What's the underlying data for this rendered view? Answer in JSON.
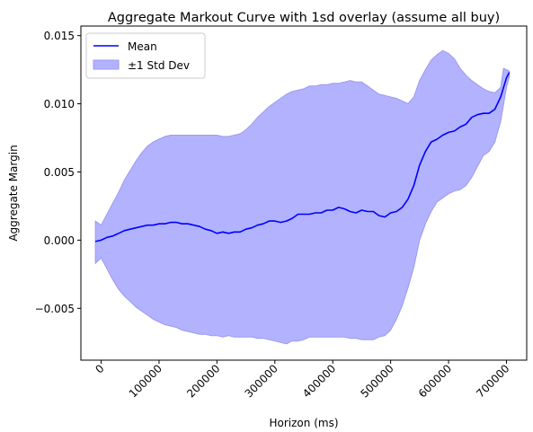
{
  "chart_data": {
    "type": "area",
    "title": "Aggregate Markout Curve with 1sd overlay (assume all buy)",
    "xlabel": "Horizon (ms)",
    "ylabel": "Aggregate Margin",
    "xlim": [
      -35000,
      735000
    ],
    "ylim": [
      -0.0088,
      0.0157
    ],
    "xticks": [
      0,
      100000,
      200000,
      300000,
      400000,
      500000,
      600000,
      700000
    ],
    "xtick_labels": [
      "0",
      "100000",
      "200000",
      "300000",
      "400000",
      "500000",
      "600000",
      "700000"
    ],
    "yticks": [
      -0.005,
      0.0,
      0.005,
      0.01,
      0.015
    ],
    "ytick_labels": [
      "−0.005",
      "0.000",
      "0.005",
      "0.010",
      "0.015"
    ],
    "x_tick_rotation_deg": 45,
    "grid": false,
    "legend_position": "upper-left",
    "series": [
      {
        "name": "Mean",
        "kind": "line",
        "color": "#0000ff",
        "points": [
          [
            -10000,
            -0.0001
          ],
          [
            0,
            0.0
          ],
          [
            10000,
            0.0002
          ],
          [
            20000,
            0.0003
          ],
          [
            30000,
            0.0005
          ],
          [
            40000,
            0.0007
          ],
          [
            50000,
            0.0008
          ],
          [
            60000,
            0.0009
          ],
          [
            70000,
            0.001
          ],
          [
            80000,
            0.0011
          ],
          [
            90000,
            0.0011
          ],
          [
            100000,
            0.0012
          ],
          [
            110000,
            0.0012
          ],
          [
            120000,
            0.0013
          ],
          [
            130000,
            0.0013
          ],
          [
            140000,
            0.0012
          ],
          [
            150000,
            0.0012
          ],
          [
            160000,
            0.0011
          ],
          [
            170000,
            0.001
          ],
          [
            180000,
            0.0008
          ],
          [
            190000,
            0.0007
          ],
          [
            200000,
            0.0005
          ],
          [
            210000,
            0.0006
          ],
          [
            220000,
            0.0005
          ],
          [
            230000,
            0.0006
          ],
          [
            240000,
            0.0006
          ],
          [
            250000,
            0.0008
          ],
          [
            260000,
            0.0009
          ],
          [
            270000,
            0.0011
          ],
          [
            280000,
            0.0012
          ],
          [
            290000,
            0.0014
          ],
          [
            300000,
            0.0014
          ],
          [
            310000,
            0.0013
          ],
          [
            320000,
            0.0014
          ],
          [
            330000,
            0.0016
          ],
          [
            340000,
            0.0019
          ],
          [
            350000,
            0.0019
          ],
          [
            360000,
            0.0019
          ],
          [
            370000,
            0.002
          ],
          [
            380000,
            0.002
          ],
          [
            390000,
            0.0022
          ],
          [
            400000,
            0.0022
          ],
          [
            410000,
            0.0024
          ],
          [
            420000,
            0.0023
          ],
          [
            430000,
            0.0021
          ],
          [
            440000,
            0.002
          ],
          [
            450000,
            0.0022
          ],
          [
            460000,
            0.0021
          ],
          [
            470000,
            0.0021
          ],
          [
            480000,
            0.0018
          ],
          [
            490000,
            0.0017
          ],
          [
            500000,
            0.002
          ],
          [
            510000,
            0.0021
          ],
          [
            520000,
            0.0024
          ],
          [
            530000,
            0.003
          ],
          [
            540000,
            0.004
          ],
          [
            550000,
            0.0055
          ],
          [
            560000,
            0.0065
          ],
          [
            570000,
            0.0072
          ],
          [
            580000,
            0.0074
          ],
          [
            590000,
            0.0077
          ],
          [
            600000,
            0.0079
          ],
          [
            610000,
            0.008
          ],
          [
            620000,
            0.0083
          ],
          [
            630000,
            0.0085
          ],
          [
            640000,
            0.009
          ],
          [
            650000,
            0.0092
          ],
          [
            660000,
            0.0093
          ],
          [
            670000,
            0.0093
          ],
          [
            680000,
            0.0096
          ],
          [
            690000,
            0.0105
          ],
          [
            700000,
            0.0119
          ],
          [
            705000,
            0.0123
          ]
        ]
      },
      {
        "name": "±1 Std Dev",
        "kind": "band",
        "fill": "#b2b2ff",
        "edge": "#9b9bf0",
        "upper": [
          [
            -10000,
            0.0014
          ],
          [
            0,
            0.0011
          ],
          [
            10000,
            0.0019
          ],
          [
            20000,
            0.0027
          ],
          [
            30000,
            0.0035
          ],
          [
            40000,
            0.0044
          ],
          [
            50000,
            0.0051
          ],
          [
            60000,
            0.0058
          ],
          [
            70000,
            0.0064
          ],
          [
            80000,
            0.0069
          ],
          [
            90000,
            0.0072
          ],
          [
            100000,
            0.0074
          ],
          [
            110000,
            0.0076
          ],
          [
            120000,
            0.0077
          ],
          [
            130000,
            0.0077
          ],
          [
            140000,
            0.0077
          ],
          [
            150000,
            0.0077
          ],
          [
            160000,
            0.0077
          ],
          [
            170000,
            0.0077
          ],
          [
            180000,
            0.0077
          ],
          [
            190000,
            0.0077
          ],
          [
            200000,
            0.0077
          ],
          [
            210000,
            0.0076
          ],
          [
            220000,
            0.0076
          ],
          [
            230000,
            0.0077
          ],
          [
            240000,
            0.0078
          ],
          [
            250000,
            0.0081
          ],
          [
            260000,
            0.0085
          ],
          [
            270000,
            0.009
          ],
          [
            280000,
            0.0094
          ],
          [
            290000,
            0.0098
          ],
          [
            300000,
            0.0101
          ],
          [
            310000,
            0.0104
          ],
          [
            320000,
            0.0107
          ],
          [
            330000,
            0.0109
          ],
          [
            340000,
            0.011
          ],
          [
            350000,
            0.0111
          ],
          [
            360000,
            0.0113
          ],
          [
            370000,
            0.0113
          ],
          [
            380000,
            0.0114
          ],
          [
            390000,
            0.0114
          ],
          [
            400000,
            0.0115
          ],
          [
            410000,
            0.0115
          ],
          [
            420000,
            0.0116
          ],
          [
            430000,
            0.0117
          ],
          [
            440000,
            0.0116
          ],
          [
            450000,
            0.0116
          ],
          [
            460000,
            0.0113
          ],
          [
            470000,
            0.011
          ],
          [
            480000,
            0.0107
          ],
          [
            490000,
            0.0106
          ],
          [
            500000,
            0.0105
          ],
          [
            510000,
            0.0104
          ],
          [
            520000,
            0.0102
          ],
          [
            530000,
            0.01
          ],
          [
            540000,
            0.0105
          ],
          [
            550000,
            0.0117
          ],
          [
            560000,
            0.0125
          ],
          [
            570000,
            0.0132
          ],
          [
            580000,
            0.0136
          ],
          [
            590000,
            0.0139
          ],
          [
            600000,
            0.0137
          ],
          [
            610000,
            0.0133
          ],
          [
            620000,
            0.0126
          ],
          [
            630000,
            0.0121
          ],
          [
            640000,
            0.0117
          ],
          [
            650000,
            0.0114
          ],
          [
            660000,
            0.0111
          ],
          [
            670000,
            0.0109
          ],
          [
            680000,
            0.0108
          ],
          [
            690000,
            0.0112
          ],
          [
            695000,
            0.0126
          ],
          [
            700000,
            0.0125
          ],
          [
            705000,
            0.0124
          ]
        ],
        "lower": [
          [
            -10000,
            -0.0017
          ],
          [
            0,
            -0.0013
          ],
          [
            10000,
            -0.0021
          ],
          [
            20000,
            -0.0029
          ],
          [
            30000,
            -0.0036
          ],
          [
            40000,
            -0.0041
          ],
          [
            50000,
            -0.0045
          ],
          [
            60000,
            -0.0049
          ],
          [
            70000,
            -0.0052
          ],
          [
            80000,
            -0.0055
          ],
          [
            90000,
            -0.0058
          ],
          [
            100000,
            -0.006
          ],
          [
            110000,
            -0.0062
          ],
          [
            120000,
            -0.0063
          ],
          [
            130000,
            -0.0064
          ],
          [
            140000,
            -0.0066
          ],
          [
            150000,
            -0.0067
          ],
          [
            160000,
            -0.0068
          ],
          [
            170000,
            -0.0069
          ],
          [
            180000,
            -0.0069
          ],
          [
            190000,
            -0.007
          ],
          [
            200000,
            -0.007
          ],
          [
            210000,
            -0.0071
          ],
          [
            220000,
            -0.007
          ],
          [
            230000,
            -0.0071
          ],
          [
            240000,
            -0.0071
          ],
          [
            250000,
            -0.0071
          ],
          [
            260000,
            -0.0071
          ],
          [
            270000,
            -0.0072
          ],
          [
            280000,
            -0.0072
          ],
          [
            290000,
            -0.0073
          ],
          [
            300000,
            -0.0074
          ],
          [
            310000,
            -0.0075
          ],
          [
            320000,
            -0.0076
          ],
          [
            330000,
            -0.0074
          ],
          [
            340000,
            -0.0074
          ],
          [
            350000,
            -0.0073
          ],
          [
            360000,
            -0.0071
          ],
          [
            370000,
            -0.0071
          ],
          [
            380000,
            -0.0071
          ],
          [
            390000,
            -0.0071
          ],
          [
            400000,
            -0.0071
          ],
          [
            410000,
            -0.0071
          ],
          [
            420000,
            -0.0071
          ],
          [
            430000,
            -0.0072
          ],
          [
            440000,
            -0.0072
          ],
          [
            450000,
            -0.0073
          ],
          [
            460000,
            -0.0073
          ],
          [
            470000,
            -0.0073
          ],
          [
            480000,
            -0.0071
          ],
          [
            490000,
            -0.007
          ],
          [
            500000,
            -0.0066
          ],
          [
            510000,
            -0.0058
          ],
          [
            520000,
            -0.0048
          ],
          [
            530000,
            -0.0035
          ],
          [
            540000,
            -0.002
          ],
          [
            550000,
            0.0
          ],
          [
            560000,
            0.0012
          ],
          [
            570000,
            0.0021
          ],
          [
            580000,
            0.0028
          ],
          [
            590000,
            0.0031
          ],
          [
            600000,
            0.0034
          ],
          [
            610000,
            0.0036
          ],
          [
            620000,
            0.0037
          ],
          [
            630000,
            0.004
          ],
          [
            640000,
            0.0046
          ],
          [
            650000,
            0.0054
          ],
          [
            660000,
            0.0062
          ],
          [
            670000,
            0.0065
          ],
          [
            680000,
            0.0072
          ],
          [
            690000,
            0.0087
          ],
          [
            700000,
            0.0112
          ],
          [
            705000,
            0.012
          ]
        ]
      }
    ]
  }
}
